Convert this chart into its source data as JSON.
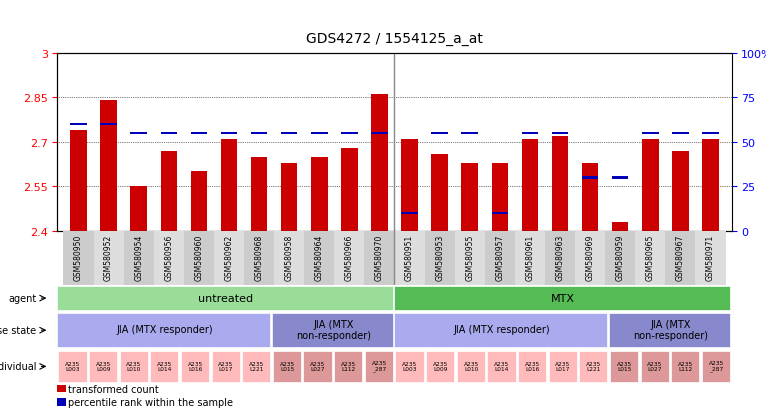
{
  "title": "GDS4272 / 1554125_a_at",
  "samples": [
    "GSM580950",
    "GSM580952",
    "GSM580954",
    "GSM580956",
    "GSM580960",
    "GSM580962",
    "GSM580968",
    "GSM580958",
    "GSM580964",
    "GSM580966",
    "GSM580970",
    "GSM580951",
    "GSM580953",
    "GSM580955",
    "GSM580957",
    "GSM580961",
    "GSM580963",
    "GSM580969",
    "GSM580959",
    "GSM580965",
    "GSM580967",
    "GSM580971"
  ],
  "red_values": [
    2.74,
    2.84,
    2.55,
    2.67,
    2.6,
    2.71,
    2.65,
    2.63,
    2.65,
    2.68,
    2.86,
    2.71,
    2.66,
    2.63,
    2.63,
    2.71,
    2.72,
    2.63,
    2.43,
    2.71,
    2.67,
    2.71
  ],
  "blue_percentiles": [
    60,
    60,
    55,
    55,
    55,
    55,
    55,
    55,
    55,
    55,
    55,
    10,
    55,
    55,
    10,
    55,
    55,
    30,
    30,
    55,
    55,
    55
  ],
  "ymin": 2.4,
  "ymax": 3.0,
  "yticks": [
    2.4,
    2.55,
    2.7,
    2.85,
    3.0
  ],
  "ytick_labels": [
    "2.4",
    "2.55",
    "2.7",
    "2.85",
    "3"
  ],
  "y2ticks": [
    0,
    25,
    50,
    75,
    100
  ],
  "y2tick_labels": [
    "0",
    "25",
    "50",
    "75",
    "100%"
  ],
  "agent_spans": [
    {
      "text": "untreated",
      "start": 0,
      "end": 10,
      "color": "#99DD99"
    },
    {
      "text": "MTX",
      "start": 11,
      "end": 21,
      "color": "#55BB55"
    }
  ],
  "disease_spans": [
    {
      "text": "JIA (MTX responder)",
      "start": 0,
      "end": 6,
      "color": "#AAAAEE"
    },
    {
      "text": "JIA (MTX\nnon-responder)",
      "start": 7,
      "end": 10,
      "color": "#8888CC"
    },
    {
      "text": "JIA (MTX responder)",
      "start": 11,
      "end": 17,
      "color": "#AAAAEE"
    },
    {
      "text": "JIA (MTX\nnon-responder)",
      "start": 18,
      "end": 21,
      "color": "#8888CC"
    }
  ],
  "individuals": [
    "A235\nL003",
    "A235\nL009",
    "A235\nL010",
    "A235\nL014",
    "A235\nL016",
    "A235\nL017",
    "A235\nL221",
    "A235\nL015",
    "A235\nL027",
    "A235\nL112",
    "A235\n_287",
    "A235\nL003",
    "A235\nL009",
    "A235\nL010",
    "A235\nL014",
    "A235\nL016",
    "A235\nL017",
    "A235\nL221",
    "A235\nL015",
    "A235\nL027",
    "A235\nL112",
    "A235\n_287"
  ],
  "ind_colors": [
    "#FFBBBB",
    "#FFBBBB",
    "#FFBBBB",
    "#FFBBBB",
    "#FFBBBB",
    "#FFBBBB",
    "#FFBBBB",
    "#DD9999",
    "#DD9999",
    "#DD9999",
    "#DD9999",
    "#FFBBBB",
    "#FFBBBB",
    "#FFBBBB",
    "#FFBBBB",
    "#FFBBBB",
    "#FFBBBB",
    "#FFBBBB",
    "#DD9999",
    "#DD9999",
    "#DD9999",
    "#DD9999"
  ],
  "bar_color": "#CC0000",
  "blue_bar_color": "#0000BB",
  "bg_color": "#FFFFFF",
  "chart_bg": "#FFFFFF",
  "tick_area_bg": "#E0E0E0",
  "separator_after": 10,
  "legend_items": [
    {
      "color": "#CC0000",
      "label": "transformed count"
    },
    {
      "color": "#0000BB",
      "label": "percentile rank within the sample"
    }
  ]
}
